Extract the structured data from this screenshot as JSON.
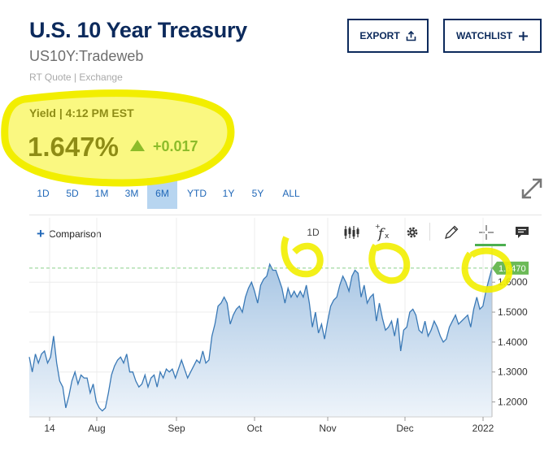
{
  "header": {
    "title": "U.S. 10 Year Treasury",
    "symbol": "US10Y:Tradeweb",
    "quote_source": "RT Quote | Exchange",
    "export_label": "EXPORT",
    "watchlist_label": "WATCHLIST"
  },
  "quote": {
    "yield_label": "Yield | 4:12 PM EST",
    "value": "1.647%",
    "change": "+0.017",
    "direction": "up",
    "up_color": "#0c7a3e"
  },
  "ranges": [
    "1D",
    "5D",
    "1M",
    "3M",
    "6M",
    "YTD",
    "1Y",
    "5Y",
    "ALL"
  ],
  "active_range": "6M",
  "toolbar": {
    "comparison_label": "Comparison",
    "interval_label": "1D",
    "icons": [
      "candlestick-icon",
      "function-icon",
      "gear-icon",
      "pencil-icon",
      "crosshair-icon",
      "comment-icon"
    ]
  },
  "chart_data": {
    "type": "area",
    "x_tick_labels": [
      "14",
      "Aug",
      "Sep",
      "Oct",
      "Nov",
      "Dec",
      "2022"
    ],
    "y_tick_labels": [
      "1.6000",
      "1.5000",
      "1.4000",
      "1.3000",
      "1.2000"
    ],
    "ylim": [
      1.15,
      1.72
    ],
    "last_value_label": "1.6470",
    "last_value": 1.647,
    "colors": {
      "line": "#3a79b6",
      "fill_top": "#a8c6e4",
      "fill_bottom": "#eef4fa",
      "last_tag": "#6cba57",
      "reference": "#8bd08b"
    },
    "series": [
      {
        "values": [
          1.35,
          1.3,
          1.36,
          1.33,
          1.36,
          1.37,
          1.33,
          1.35,
          1.42,
          1.33,
          1.27,
          1.25,
          1.18,
          1.22,
          1.27,
          1.3,
          1.26,
          1.29,
          1.28,
          1.28,
          1.23,
          1.26,
          1.2,
          1.18,
          1.17,
          1.18,
          1.23,
          1.29,
          1.32,
          1.34,
          1.35,
          1.33,
          1.36,
          1.3,
          1.3,
          1.27,
          1.25,
          1.26,
          1.29,
          1.25,
          1.28,
          1.29,
          1.25,
          1.3,
          1.28,
          1.31,
          1.3,
          1.31,
          1.28,
          1.31,
          1.34,
          1.31,
          1.28,
          1.3,
          1.32,
          1.34,
          1.33,
          1.37,
          1.33,
          1.34,
          1.42,
          1.46,
          1.52,
          1.53,
          1.55,
          1.53,
          1.46,
          1.49,
          1.51,
          1.52,
          1.5,
          1.55,
          1.58,
          1.6,
          1.57,
          1.53,
          1.59,
          1.61,
          1.62,
          1.66,
          1.64,
          1.64,
          1.61,
          1.58,
          1.53,
          1.58,
          1.55,
          1.57,
          1.55,
          1.57,
          1.55,
          1.59,
          1.53,
          1.45,
          1.5,
          1.43,
          1.46,
          1.41,
          1.47,
          1.52,
          1.54,
          1.55,
          1.59,
          1.62,
          1.6,
          1.57,
          1.62,
          1.64,
          1.63,
          1.55,
          1.59,
          1.53,
          1.55,
          1.56,
          1.47,
          1.53,
          1.48,
          1.44,
          1.45,
          1.47,
          1.42,
          1.48,
          1.37,
          1.44,
          1.45,
          1.5,
          1.51,
          1.49,
          1.44,
          1.43,
          1.47,
          1.42,
          1.44,
          1.47,
          1.45,
          1.42,
          1.4,
          1.41,
          1.45,
          1.47,
          1.49,
          1.46,
          1.47,
          1.48,
          1.49,
          1.45,
          1.51,
          1.55,
          1.51,
          1.52,
          1.57,
          1.61,
          1.647
        ]
      }
    ]
  }
}
